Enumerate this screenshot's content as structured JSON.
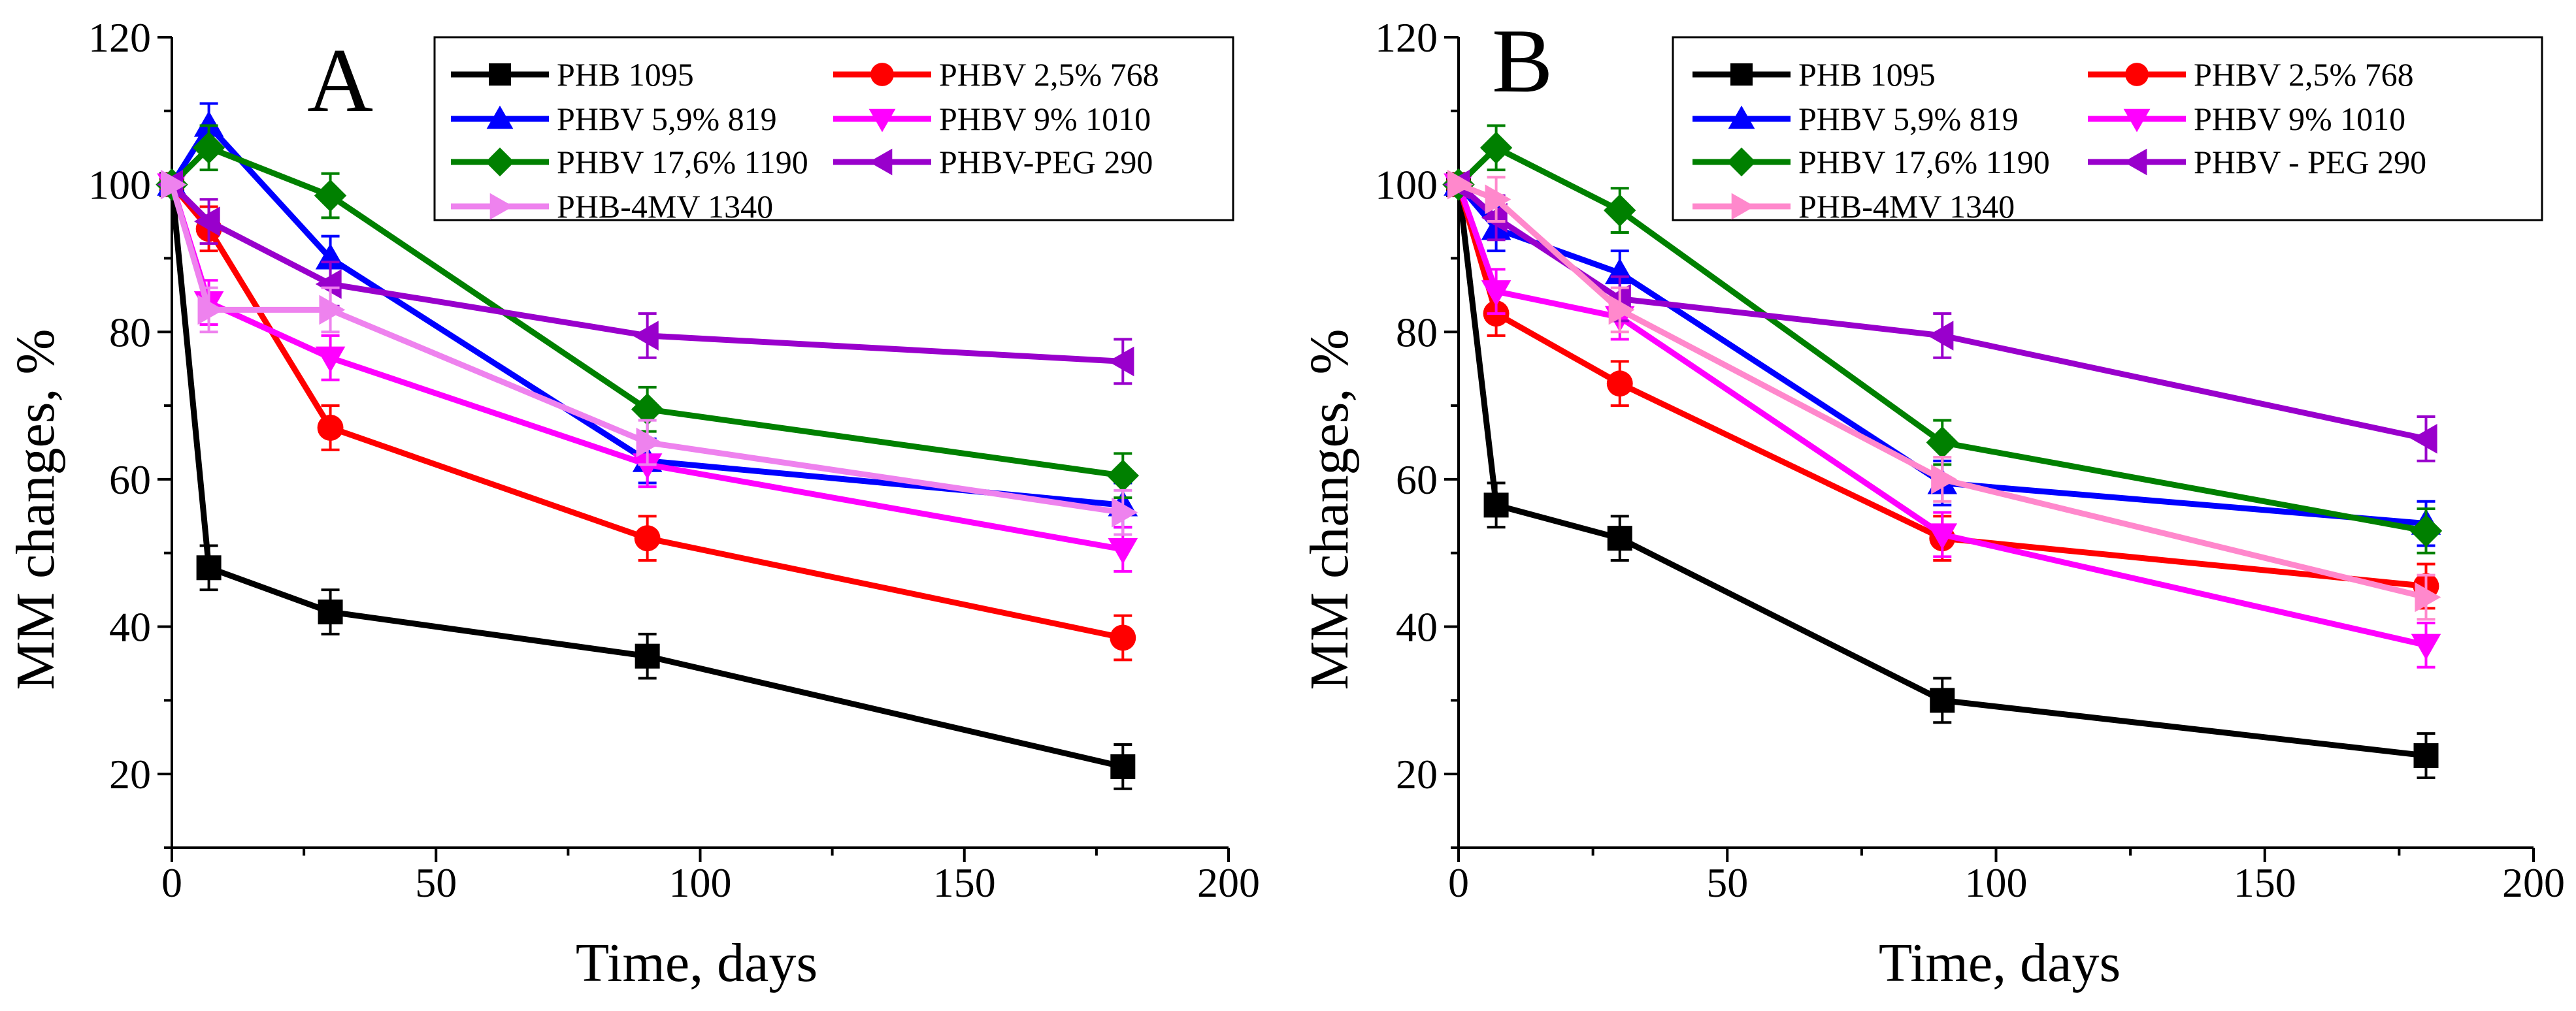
{
  "chart_data": [
    {
      "type": "line",
      "panel_label": "A",
      "xlabel": "Time, days",
      "ylabel": "MM changes, %",
      "xlim": [
        0,
        200
      ],
      "ylim": [
        10,
        120
      ],
      "xticks": [
        0,
        50,
        100,
        150,
        200
      ],
      "yticks": [
        20,
        40,
        60,
        80,
        100,
        120
      ],
      "error_bar": 3,
      "legend": "top-right, two columns",
      "series": [
        {
          "name": "PHB 1095",
          "color": "#000000",
          "marker": "square",
          "x": [
            0,
            7,
            30,
            90,
            180
          ],
          "y": [
            100,
            48,
            42,
            36,
            21
          ]
        },
        {
          "name": "PHBV 2,5% 768",
          "color": "#ff0000",
          "marker": "circle",
          "x": [
            0,
            7,
            30,
            90,
            180
          ],
          "y": [
            100,
            94,
            67,
            52,
            38.5
          ]
        },
        {
          "name": "PHBV 5,9% 819",
          "color": "#0000ff",
          "marker": "triangle-up",
          "x": [
            0,
            7,
            30,
            90,
            180
          ],
          "y": [
            100,
            108,
            90,
            62.5,
            56.5
          ]
        },
        {
          "name": "PHBV 9% 1010",
          "color": "#ff00ff",
          "marker": "triangle-down",
          "x": [
            0,
            7,
            30,
            90,
            180
          ],
          "y": [
            100,
            84,
            76.5,
            62,
            50.5
          ]
        },
        {
          "name": "PHBV 17,6% 1190",
          "color": "#008000",
          "marker": "diamond",
          "x": [
            0,
            7,
            30,
            90,
            180
          ],
          "y": [
            100,
            105,
            98.5,
            69.5,
            60.5
          ]
        },
        {
          "name": "PHBV-PEG  290",
          "color": "#9900cc",
          "marker": "triangle-left",
          "x": [
            0,
            7,
            30,
            90,
            180
          ],
          "y": [
            100,
            95,
            86.5,
            79.5,
            76
          ]
        },
        {
          "name": "PHB-4MV 1340",
          "color": "#ee82ee",
          "marker": "triangle-right",
          "x": [
            0,
            7,
            30,
            90,
            180
          ],
          "y": [
            100,
            83,
            83,
            65,
            55.5
          ]
        }
      ]
    },
    {
      "type": "line",
      "panel_label": "B",
      "xlabel": "Time, days",
      "ylabel": "MM changes, %",
      "xlim": [
        0,
        200
      ],
      "ylim": [
        10,
        120
      ],
      "xticks": [
        0,
        50,
        100,
        150,
        200
      ],
      "yticks": [
        20,
        40,
        60,
        80,
        100,
        120
      ],
      "error_bar": 3,
      "legend": "top-right, two columns",
      "series": [
        {
          "name": "PHB 1095",
          "color": "#000000",
          "marker": "square",
          "x": [
            0,
            7,
            30,
            90,
            180
          ],
          "y": [
            100,
            56.5,
            52,
            30,
            22.5
          ]
        },
        {
          "name": "PHBV 2,5% 768",
          "color": "#ff0000",
          "marker": "circle",
          "x": [
            0,
            7,
            30,
            90,
            180
          ],
          "y": [
            100,
            82.5,
            73,
            52,
            45.5
          ]
        },
        {
          "name": "PHBV 5,9% 819",
          "color": "#0000ff",
          "marker": "triangle-up",
          "x": [
            0,
            7,
            30,
            90,
            180
          ],
          "y": [
            100,
            94,
            88,
            59.5,
            54
          ]
        },
        {
          "name": "PHBV 9% 1010",
          "color": "#ff00ff",
          "marker": "triangle-down",
          "x": [
            0,
            7,
            30,
            90,
            180
          ],
          "y": [
            100,
            85.5,
            82,
            52.5,
            37.5
          ]
        },
        {
          "name": "PHBV 17,6% 1190",
          "color": "#008000",
          "marker": "diamond",
          "x": [
            0,
            7,
            30,
            90,
            180
          ],
          "y": [
            100,
            105,
            96.5,
            65,
            53
          ]
        },
        {
          "name": "PHBV - PEG 290",
          "color": "#9900cc",
          "marker": "triangle-left",
          "x": [
            0,
            7,
            30,
            90,
            180
          ],
          "y": [
            100,
            95.5,
            84.5,
            79.5,
            65.5
          ]
        },
        {
          "name": "PHB-4MV 1340",
          "color": "#ff88cc",
          "marker": "triangle-right",
          "x": [
            0,
            7,
            30,
            90,
            180
          ],
          "y": [
            100,
            98,
            83,
            60,
            44
          ]
        }
      ]
    }
  ]
}
